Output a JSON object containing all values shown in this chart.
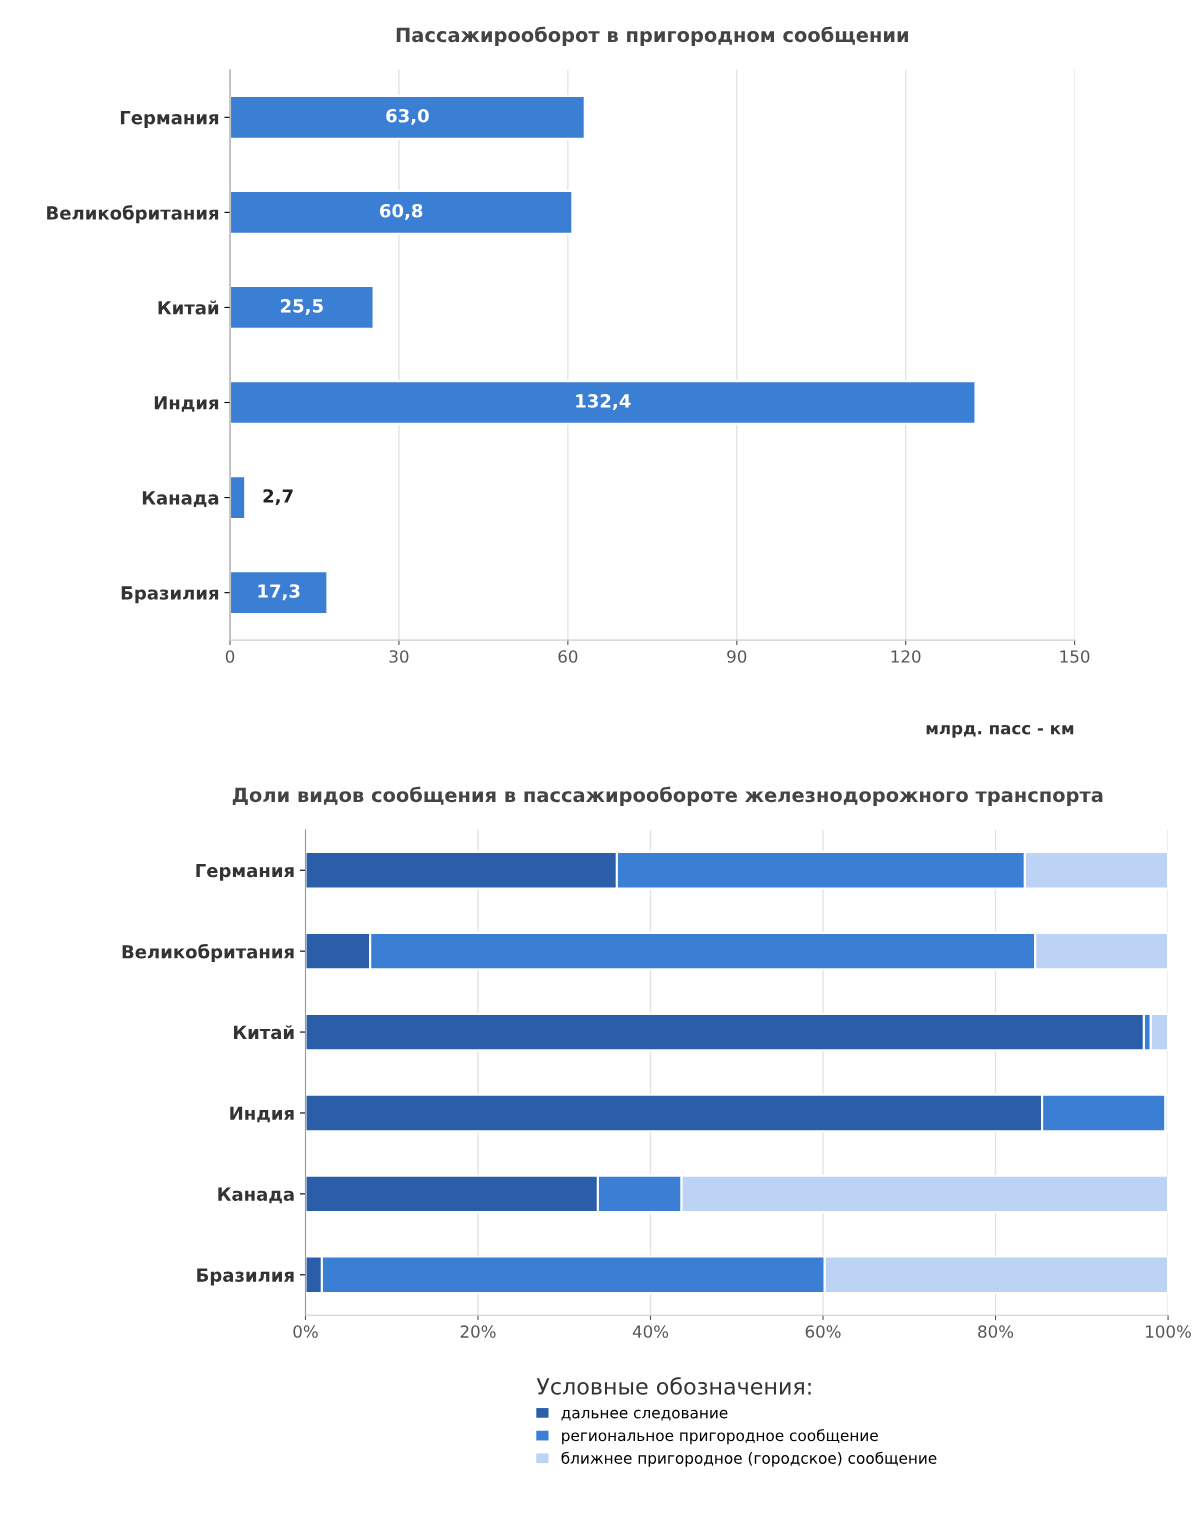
{
  "chart_data": [
    {
      "type": "bar",
      "orientation": "horizontal",
      "title": "Пассажирооборот в пригородном сообщении",
      "xlabel": "млрд. пасс - км",
      "categories": [
        "Германия",
        "Великобритания",
        "Китай",
        "Индия",
        "Канада",
        "Бразилия"
      ],
      "values": [
        63.0,
        60.8,
        25.5,
        132.4,
        2.7,
        17.3
      ],
      "value_labels": [
        "63,0",
        "60,8",
        "25,5",
        "132,4",
        "2,7",
        "17,3"
      ],
      "color": "#3a7fd4",
      "xlim": [
        0,
        150
      ],
      "xticks": [
        0,
        30,
        60,
        90,
        120,
        150
      ],
      "grid": "x"
    },
    {
      "type": "bar",
      "orientation": "horizontal",
      "stacked": true,
      "title": "Доли видов сообщения в пассажирообороте железнодорожного транспорта",
      "categories": [
        "Германия",
        "Великобритания",
        "Китай",
        "Индия",
        "Канада",
        "Бразилия"
      ],
      "legend_title": "Условные обозначения:",
      "legend": "bottom",
      "series": [
        {
          "name": "дальнее следование",
          "color": "#2a5ea8",
          "values": [
            36.1,
            7.5,
            97.2,
            85.4,
            33.9,
            1.9
          ]
        },
        {
          "name": "региональное пригородное сообщение",
          "color": "#3a7fd4",
          "values": [
            47.3,
            77.1,
            0.8,
            14.3,
            9.7,
            58.3
          ]
        },
        {
          "name": "ближнее пригородное (городское) сообщение",
          "color": "#bcd3f5",
          "values": [
            16.6,
            15.4,
            2.0,
            0.3,
            56.4,
            39.8
          ]
        }
      ],
      "xlim": [
        0,
        100
      ],
      "xticks": [
        {
          "value": 0,
          "label": "0%"
        },
        {
          "value": 20,
          "label": "20%"
        },
        {
          "value": 40,
          "label": "40%"
        },
        {
          "value": 60,
          "label": "60%"
        },
        {
          "value": 80,
          "label": "80%"
        },
        {
          "value": 100,
          "label": "100%"
        }
      ],
      "grid": "x"
    }
  ]
}
